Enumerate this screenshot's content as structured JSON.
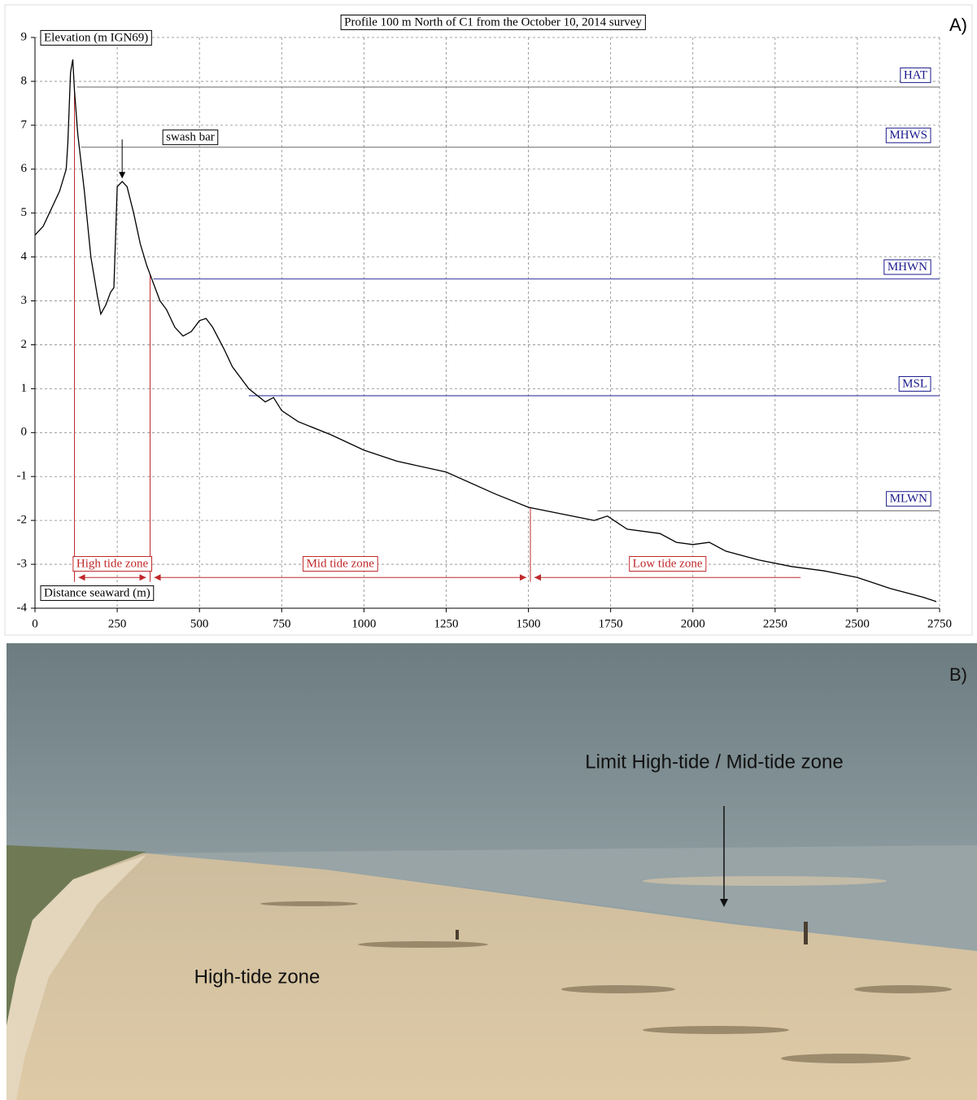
{
  "chart_data": {
    "type": "line",
    "panel_label": "A)",
    "title": "Profile 100 m North of C1 from the October 10, 2014 survey",
    "ylabel": "Elevation (m IGN69)",
    "xlabel": "Distance seaward (m)",
    "color": "#000000",
    "x": [
      0,
      25,
      50,
      75,
      95,
      100,
      108,
      115,
      120,
      130,
      150,
      170,
      190,
      200,
      215,
      230,
      240,
      250,
      265,
      280,
      300,
      320,
      340,
      360,
      380,
      400,
      425,
      450,
      475,
      500,
      520,
      540,
      575,
      600,
      650,
      700,
      725,
      750,
      800,
      900,
      1000,
      1100,
      1250,
      1400,
      1500,
      1600,
      1700,
      1740,
      1800,
      1900,
      1950,
      2000,
      2050,
      2100,
      2200,
      2300,
      2400,
      2500,
      2600,
      2700,
      2740
    ],
    "values": [
      4.5,
      4.7,
      5.1,
      5.5,
      6.0,
      6.6,
      8.2,
      8.5,
      7.8,
      6.8,
      5.5,
      4.0,
      3.1,
      2.7,
      2.9,
      3.2,
      3.3,
      5.6,
      5.72,
      5.6,
      5.0,
      4.3,
      3.8,
      3.4,
      3.0,
      2.8,
      2.4,
      2.2,
      2.3,
      2.55,
      2.6,
      2.4,
      1.9,
      1.5,
      1.0,
      0.7,
      0.8,
      0.5,
      0.25,
      -0.05,
      -0.4,
      -0.65,
      -0.9,
      -1.4,
      -1.7,
      -1.85,
      -2.0,
      -1.9,
      -2.2,
      -2.3,
      -2.5,
      -2.55,
      -2.5,
      -2.7,
      -2.9,
      -3.05,
      -3.15,
      -3.3,
      -3.55,
      -3.75,
      -3.85
    ],
    "xlim": [
      0,
      2750
    ],
    "xticks": [
      0,
      250,
      500,
      750,
      1000,
      1250,
      1500,
      1750,
      2000,
      2250,
      2500,
      2750
    ],
    "ylim": [
      -4,
      9
    ],
    "yticks": [
      -4,
      -3,
      -2,
      -1,
      0,
      1,
      2,
      3,
      4,
      5,
      6,
      7,
      8,
      9
    ],
    "grid": true,
    "reference_levels": [
      {
        "label": "HAT",
        "value": 7.87,
        "x_start": 128
      },
      {
        "label": "MHWS",
        "value": 6.5,
        "x_start": 140
      },
      {
        "label": "MHWN",
        "value": 3.5,
        "x_start": 360
      },
      {
        "label": "MSL",
        "value": 0.84,
        "x_start": 650
      },
      {
        "label": "MLWN",
        "value": -1.78,
        "x_start": 1710
      }
    ],
    "zones": [
      {
        "label": "High tide zone",
        "start": 120,
        "end": 350
      },
      {
        "label": "Mid tide zone",
        "start": 350,
        "end": 1506
      },
      {
        "label": "Low tide zone",
        "start": 1506,
        "end": 2340
      }
    ],
    "annotation": {
      "label": "swash bar",
      "x": 265,
      "y": 5.75
    }
  },
  "photo": {
    "panel_label": "B)",
    "annotations": [
      "Limit High-tide / Mid-tide zone",
      "High-tide zone"
    ]
  }
}
